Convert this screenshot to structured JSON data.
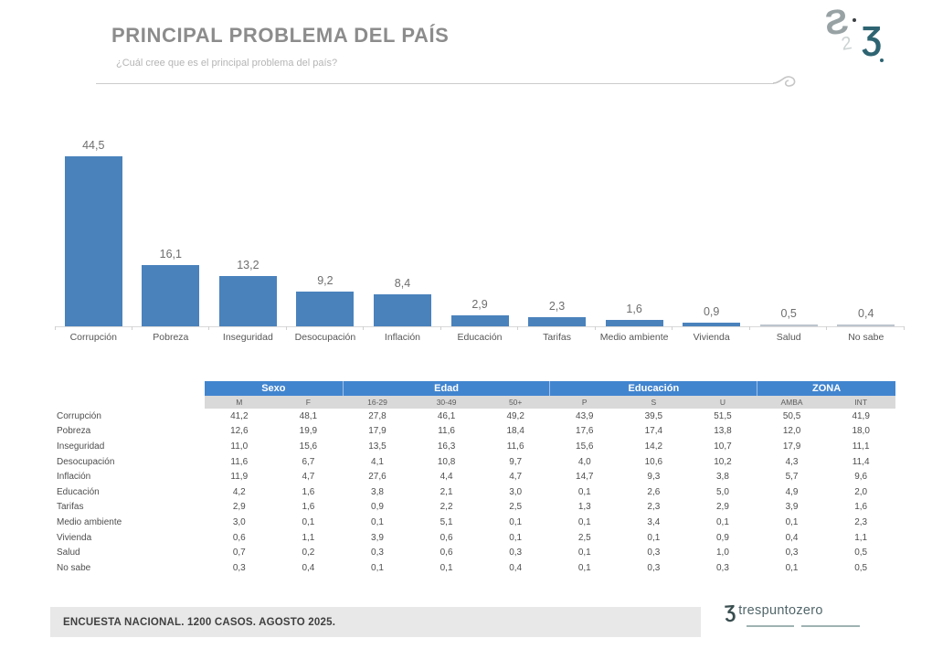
{
  "header": {
    "title": "PRINCIPAL PROBLEMA DEL PAÍS",
    "subtitle": "¿Cuál cree que es el principal problema del país?"
  },
  "chart_data": [
    {
      "type": "bar",
      "title": "PRINCIPAL PROBLEMA DEL PAÍS",
      "categories": [
        "Corrupción",
        "Pobreza",
        "Inseguridad",
        "Desocupación",
        "Inflación",
        "Educación",
        "Tarifas",
        "Medio ambiente",
        "Vivienda",
        "Salud",
        "No sabe"
      ],
      "values": [
        44.5,
        16.1,
        13.2,
        9.2,
        8.4,
        2.9,
        2.3,
        1.6,
        0.9,
        0.5,
        0.4
      ],
      "xlabel": "",
      "ylabel": "",
      "ylim": [
        0,
        48
      ],
      "grid": false,
      "data_labels": true,
      "decimal_separator": ",",
      "bar_color": "#4a82bc",
      "small_bar_color": "#bcc5ce",
      "small_bar_threshold": 0.5
    },
    {
      "type": "table",
      "title": "Desglose por Sexo / Edad / Educación / ZONA",
      "groups": [
        {
          "label": "Sexo",
          "span": 2
        },
        {
          "label": "Edad",
          "span": 3
        },
        {
          "label": "Educación",
          "span": 3
        },
        {
          "label": "ZONA",
          "span": 2
        }
      ],
      "columns": [
        "M",
        "F",
        "16-29",
        "30-49",
        "50+",
        "P",
        "S",
        "U",
        "AMBA",
        "INT"
      ],
      "decimal_separator": ",",
      "rows": [
        {
          "label": "Corrupción",
          "values": [
            41.2,
            48.1,
            27.8,
            46.1,
            49.2,
            43.9,
            39.5,
            51.5,
            50.5,
            41.9
          ]
        },
        {
          "label": "Pobreza",
          "values": [
            12.6,
            19.9,
            17.9,
            11.6,
            18.4,
            17.6,
            17.4,
            13.8,
            12.0,
            18.0
          ]
        },
        {
          "label": "Inseguridad",
          "values": [
            11.0,
            15.6,
            13.5,
            16.3,
            11.6,
            15.6,
            14.2,
            10.7,
            17.9,
            11.1
          ]
        },
        {
          "label": "Desocupación",
          "values": [
            11.6,
            6.7,
            4.1,
            10.8,
            9.7,
            4.0,
            10.6,
            10.2,
            4.3,
            11.4
          ]
        },
        {
          "label": "Inflación",
          "values": [
            11.9,
            4.7,
            27.6,
            4.4,
            4.7,
            14.7,
            9.3,
            3.8,
            5.7,
            9.6
          ]
        },
        {
          "label": "Educación",
          "values": [
            4.2,
            1.6,
            3.8,
            2.1,
            3.0,
            0.1,
            2.6,
            5.0,
            4.9,
            2.0
          ]
        },
        {
          "label": "Tarifas",
          "values": [
            2.9,
            1.6,
            0.9,
            2.2,
            2.5,
            1.3,
            2.3,
            2.9,
            3.9,
            1.6
          ]
        },
        {
          "label": "Medio ambiente",
          "values": [
            3.0,
            0.1,
            0.1,
            5.1,
            0.1,
            0.1,
            3.4,
            0.1,
            0.1,
            2.3
          ]
        },
        {
          "label": "Vivienda",
          "values": [
            0.6,
            1.1,
            3.9,
            0.6,
            0.1,
            2.5,
            0.1,
            0.9,
            0.4,
            1.1
          ]
        },
        {
          "label": "Salud",
          "values": [
            0.7,
            0.2,
            0.3,
            0.6,
            0.3,
            0.1,
            0.3,
            1.0,
            0.3,
            0.5
          ]
        },
        {
          "label": "No sabe",
          "values": [
            0.3,
            0.4,
            0.1,
            0.1,
            0.4,
            0.1,
            0.3,
            0.3,
            0.1,
            0.5
          ]
        }
      ]
    }
  ],
  "footer": {
    "note": "ENCUESTA NACIONAL. 1200 CASOS. AGOSTO 2025."
  },
  "brand": {
    "name": "trespuntozero",
    "icon_glyph": "Ʒ",
    "top_mark_glyphs": [
      "Ƨ",
      "2",
      "Ʒ"
    ]
  },
  "colors": {
    "bar_blue": "#4a82bc",
    "table_header_blue": "#4285cf",
    "title_gray": "#8c8c8c",
    "footer_bg": "#e8e8e8",
    "brand_teal": "#2e6472"
  }
}
